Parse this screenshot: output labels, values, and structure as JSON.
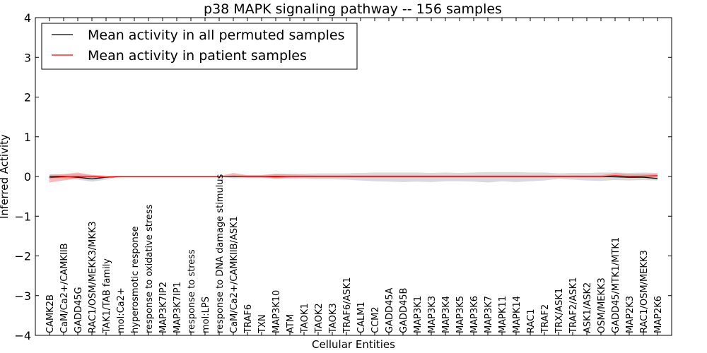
{
  "chart_data": {
    "type": "line",
    "title": "p38 MAPK signaling pathway -- 156 samples",
    "xlabel": "Cellular Entities",
    "ylabel": "Inferred Activity",
    "ylim": [
      -4,
      4
    ],
    "yticks": [
      4,
      3,
      2,
      1,
      0,
      -1,
      -2,
      -3,
      -4
    ],
    "ytick_labels": [
      "4",
      "3",
      "2",
      "1",
      "0",
      "−1",
      "−2",
      "−3",
      "−4"
    ],
    "grid": false,
    "legend_position": "top-left",
    "categories": [
      "CAMK2B",
      "CaM/Ca2+/CAMKIIB",
      "GADD45G",
      "RAC1/OSM/MEKK3/MKK3",
      "TAK1/TAB family",
      "mol:Ca2+",
      "hyperosmotic response",
      "response to oxidative stress",
      "MAP3K7IP2",
      "MAP3K7IP1",
      "response to stress",
      "mol:LPS",
      "response to DNA damage stimulus",
      "CaM/Ca2+/CAMKIIB/ASK1",
      "TRAF6",
      "TXN",
      "MAP3K10",
      "ATM",
      "TAOK1",
      "TAOK2",
      "TAOK3",
      "TRAF6/ASK1",
      "CALM1",
      "CCM2",
      "GADD45A",
      "GADD45B",
      "MAP3K1",
      "MAP3K3",
      "MAP3K4",
      "MAP3K5",
      "MAP3K6",
      "MAP3K7",
      "MAPK11",
      "MAPK14",
      "RAC1",
      "TRAF2",
      "TRX/ASK1",
      "TRAF2/ASK1",
      "ASK1/ASK2",
      "OSM/MEKK3",
      "GADD45/MTK1/MTK1",
      "MAP2K3",
      "RAC1/OSM/MEKK3",
      "MAP2K6"
    ],
    "series": [
      {
        "name": "Mean activity in all permuted samples",
        "color": "#000000",
        "band_color": "#bbbbbb",
        "values": [
          0.0,
          0.0,
          -0.02,
          -0.06,
          -0.02,
          0.0,
          0.0,
          0.0,
          0.0,
          0.0,
          0.0,
          0.0,
          0.0,
          0.0,
          0.0,
          0.0,
          0.0,
          0.0,
          0.0,
          0.0,
          0.0,
          0.0,
          0.0,
          0.0,
          0.0,
          0.0,
          0.0,
          0.0,
          0.0,
          0.0,
          0.0,
          0.0,
          0.0,
          0.0,
          0.0,
          0.0,
          0.0,
          0.0,
          0.0,
          0.0,
          -0.01,
          -0.02,
          -0.02,
          -0.05
        ],
        "lower": [
          -0.05,
          -0.05,
          -0.08,
          -0.13,
          -0.08,
          -0.01,
          -0.01,
          -0.01,
          -0.01,
          -0.01,
          -0.01,
          -0.01,
          -0.01,
          -0.05,
          -0.04,
          -0.04,
          -0.06,
          -0.06,
          -0.06,
          -0.07,
          -0.07,
          -0.08,
          -0.1,
          -0.12,
          -0.13,
          -0.14,
          -0.13,
          -0.14,
          -0.12,
          -0.12,
          -0.13,
          -0.15,
          -0.12,
          -0.14,
          -0.12,
          -0.1,
          -0.06,
          -0.08,
          -0.1,
          -0.11,
          -0.09,
          -0.1,
          -0.09,
          -0.1
        ],
        "upper": [
          0.05,
          0.05,
          0.06,
          0.03,
          0.02,
          0.01,
          0.01,
          0.01,
          0.01,
          0.01,
          0.01,
          0.01,
          0.01,
          0.03,
          0.04,
          0.04,
          0.07,
          0.07,
          0.07,
          0.08,
          0.08,
          0.08,
          0.09,
          0.1,
          0.1,
          0.1,
          0.1,
          0.09,
          0.1,
          0.09,
          0.1,
          0.11,
          0.11,
          0.11,
          0.1,
          0.1,
          0.08,
          0.09,
          0.09,
          0.1,
          0.1,
          0.09,
          0.1,
          0.09
        ]
      },
      {
        "name": "Mean activity in patient samples",
        "color": "#ff0000",
        "band_color": "#f08080",
        "values": [
          -0.03,
          -0.01,
          0.0,
          0.0,
          -0.02,
          0.0,
          0.0,
          0.0,
          0.0,
          0.0,
          0.0,
          0.0,
          0.0,
          0.01,
          0.0,
          0.0,
          -0.01,
          0.0,
          0.0,
          0.0,
          0.0,
          0.0,
          0.0,
          0.0,
          0.0,
          0.0,
          0.0,
          0.0,
          0.0,
          0.0,
          0.0,
          0.0,
          0.0,
          0.0,
          0.0,
          0.0,
          0.0,
          0.0,
          0.0,
          0.0,
          0.02,
          0.0,
          0.01,
          0.02
        ],
        "lower": [
          -0.15,
          -0.1,
          -0.05,
          -0.04,
          -0.04,
          -0.01,
          -0.01,
          -0.01,
          -0.01,
          -0.01,
          -0.01,
          -0.01,
          -0.01,
          -0.01,
          -0.02,
          -0.02,
          -0.05,
          -0.03,
          -0.02,
          -0.02,
          -0.02,
          -0.02,
          -0.02,
          -0.02,
          -0.02,
          -0.02,
          -0.02,
          -0.02,
          -0.02,
          -0.02,
          -0.02,
          -0.02,
          -0.02,
          -0.02,
          -0.02,
          -0.02,
          -0.02,
          -0.02,
          -0.02,
          -0.02,
          -0.02,
          -0.03,
          -0.02,
          -0.03
        ],
        "upper": [
          0.05,
          0.06,
          0.1,
          0.04,
          0.02,
          0.01,
          0.01,
          0.01,
          0.01,
          0.01,
          0.01,
          0.01,
          0.01,
          0.09,
          0.03,
          0.03,
          0.06,
          0.05,
          0.04,
          0.03,
          0.03,
          0.03,
          0.03,
          0.03,
          0.03,
          0.03,
          0.03,
          0.03,
          0.03,
          0.03,
          0.03,
          0.03,
          0.03,
          0.03,
          0.03,
          0.03,
          0.03,
          0.03,
          0.03,
          0.03,
          0.09,
          0.06,
          0.06,
          0.07
        ]
      }
    ]
  }
}
